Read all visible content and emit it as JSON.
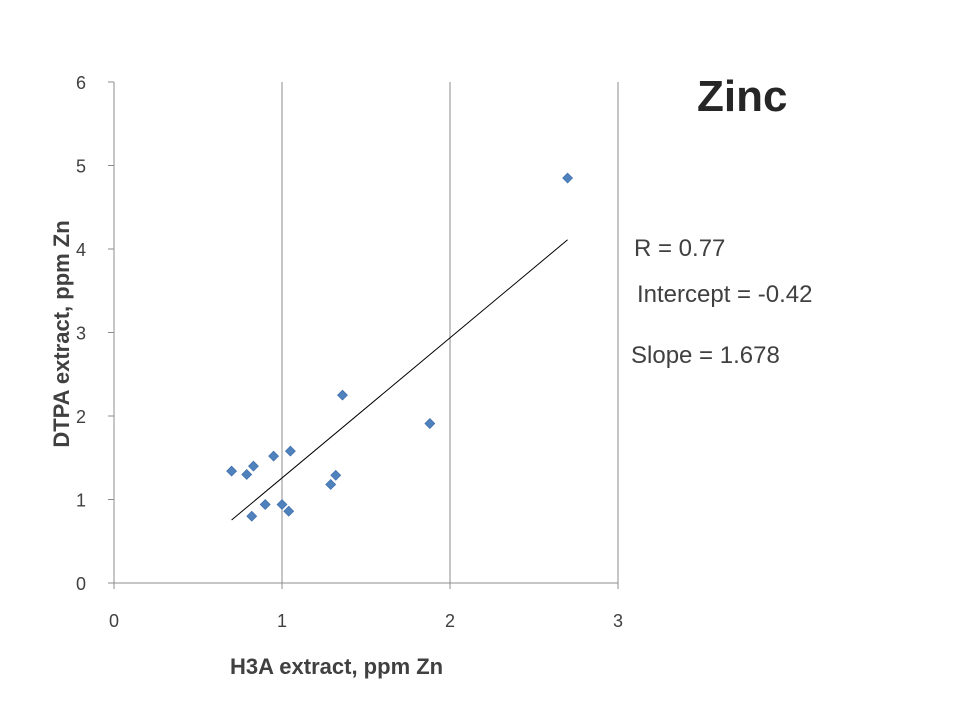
{
  "chart_data": {
    "type": "scatter",
    "title": "Zinc",
    "xlabel": "H3A extract, ppm Zn",
    "ylabel": "DTPA extract, ppm Zn",
    "xlim": [
      0,
      3
    ],
    "ylim": [
      0,
      6
    ],
    "xticks": [
      "0",
      "1",
      "2",
      "3"
    ],
    "yticks": [
      "0",
      "1",
      "2",
      "3",
      "4",
      "5",
      "6"
    ],
    "vertical_gridlines": true,
    "horizontal_gridlines": false,
    "marker": "diamond",
    "marker_color": "#4F81BD",
    "points": [
      {
        "x": 0.7,
        "y": 1.34
      },
      {
        "x": 0.79,
        "y": 1.3
      },
      {
        "x": 0.83,
        "y": 1.4
      },
      {
        "x": 0.82,
        "y": 0.8
      },
      {
        "x": 0.9,
        "y": 0.94
      },
      {
        "x": 0.95,
        "y": 1.52
      },
      {
        "x": 1.0,
        "y": 0.94
      },
      {
        "x": 1.05,
        "y": 1.58
      },
      {
        "x": 1.04,
        "y": 0.86
      },
      {
        "x": 1.29,
        "y": 1.18
      },
      {
        "x": 1.32,
        "y": 1.29
      },
      {
        "x": 1.36,
        "y": 2.25
      },
      {
        "x": 1.88,
        "y": 1.91
      },
      {
        "x": 2.7,
        "y": 4.85
      }
    ],
    "trendline": {
      "slope": 1.678,
      "intercept": -0.42,
      "x_range": [
        0.7,
        2.7
      ],
      "color": "#000000"
    },
    "annotations": {
      "r": "R = 0.77",
      "intercept": "Intercept = -0.42",
      "slope": "Slope = 1.678"
    }
  }
}
